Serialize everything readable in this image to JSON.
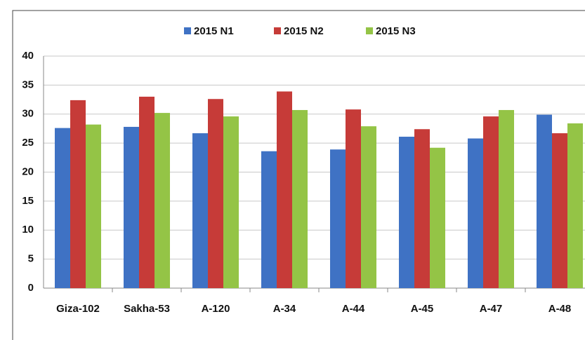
{
  "chart_data": {
    "type": "bar",
    "categories": [
      "Giza-102",
      "Sakha-53",
      "A-120",
      "A-34",
      "A-44",
      "A-45",
      "A-47",
      "A-48"
    ],
    "series": [
      {
        "name": "2015 N1",
        "color": "#3f72c4",
        "values": [
          27.6,
          27.8,
          26.7,
          23.6,
          23.9,
          26.1,
          25.8,
          29.9
        ]
      },
      {
        "name": "2015 N2",
        "color": "#c63b38",
        "values": [
          32.4,
          33.0,
          32.6,
          33.9,
          30.8,
          27.4,
          29.6,
          26.7
        ]
      },
      {
        "name": "2015 N3",
        "color": "#94c446",
        "values": [
          28.2,
          30.2,
          29.6,
          30.7,
          27.9,
          24.2,
          30.7,
          28.4
        ]
      }
    ],
    "ylim": [
      0,
      40
    ],
    "yticks": [
      0,
      5,
      10,
      15,
      20,
      25,
      30,
      35,
      40
    ],
    "grid": true,
    "legend": "top"
  }
}
